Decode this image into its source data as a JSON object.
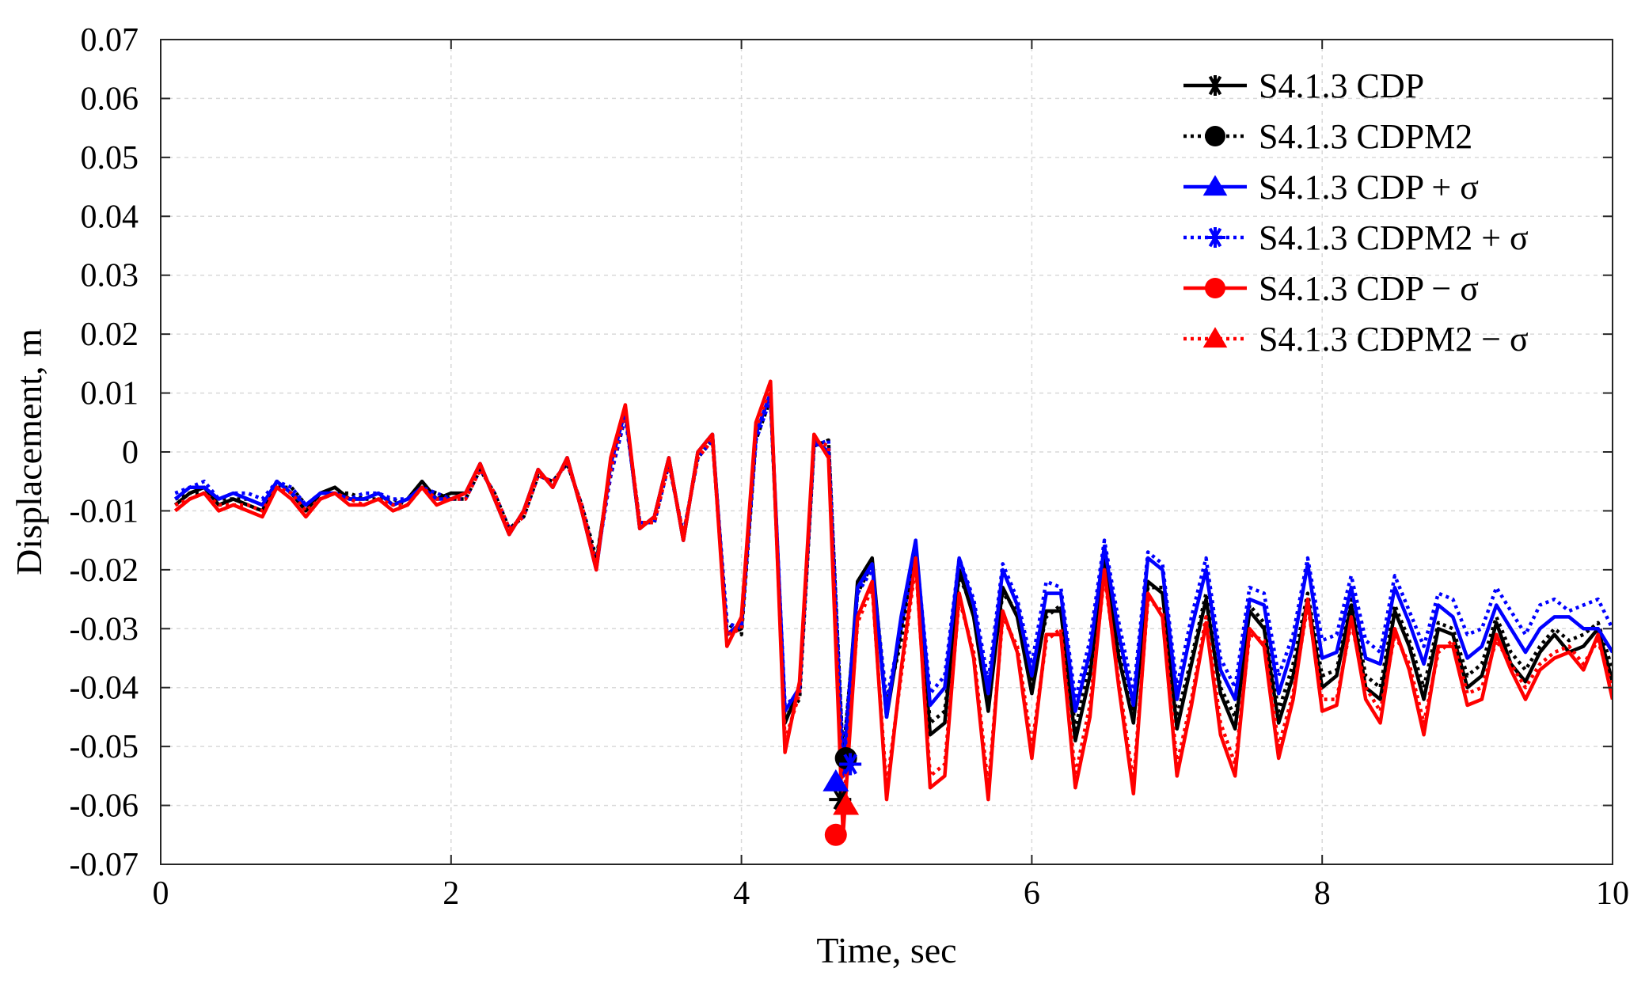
{
  "chart_data": {
    "type": "line",
    "title": "",
    "xlabel": "Time, sec",
    "ylabel": "Displacement, m",
    "xlim": [
      0,
      10
    ],
    "ylim": [
      -0.07,
      0.07
    ],
    "xticks": [
      0,
      2,
      4,
      6,
      8,
      10
    ],
    "xtick_labels": [
      "0",
      "2",
      "4",
      "6",
      "8",
      "10"
    ],
    "yticks": [
      0.07,
      0.06,
      0.05,
      0.04,
      0.03,
      0.02,
      0.01,
      0,
      -0.01,
      -0.02,
      -0.03,
      -0.04,
      -0.05,
      -0.06,
      -0.07
    ],
    "ytick_labels": [
      "0.07",
      "0.06",
      "0.05",
      "0.04",
      "0.03",
      "0.02",
      "0.01",
      "0",
      "-0.01",
      "-0.02",
      "-0.03",
      "-0.04",
      "-0.05",
      "-0.06",
      "-0.07"
    ],
    "grid": true,
    "legend_position": "top-right",
    "x": [
      0.1,
      0.2,
      0.3,
      0.4,
      0.5,
      0.6,
      0.7,
      0.8,
      0.9,
      1.0,
      1.1,
      1.2,
      1.3,
      1.4,
      1.5,
      1.6,
      1.7,
      1.8,
      1.9,
      2.0,
      2.1,
      2.2,
      2.3,
      2.4,
      2.5,
      2.6,
      2.7,
      2.8,
      2.9,
      3.0,
      3.1,
      3.2,
      3.3,
      3.4,
      3.5,
      3.6,
      3.7,
      3.8,
      3.9,
      4.0,
      4.1,
      4.2,
      4.3,
      4.4,
      4.5,
      4.6,
      4.7,
      4.8,
      4.9,
      5.0,
      5.1,
      5.2,
      5.3,
      5.4,
      5.5,
      5.6,
      5.7,
      5.8,
      5.9,
      6.0,
      6.1,
      6.2,
      6.3,
      6.4,
      6.5,
      6.6,
      6.7,
      6.8,
      6.9,
      7.0,
      7.1,
      7.2,
      7.3,
      7.4,
      7.5,
      7.6,
      7.7,
      7.8,
      7.9,
      8.0,
      8.1,
      8.2,
      8.3,
      8.4,
      8.5,
      8.6,
      8.7,
      8.8,
      8.9,
      9.0,
      9.1,
      9.2,
      9.3,
      9.4,
      9.5,
      9.6,
      9.7,
      9.8,
      9.9,
      10.0
    ],
    "series": [
      {
        "name": "S4.1.3 CDP",
        "color": "#000000",
        "line_style": "solid",
        "marker": "asterisk",
        "values": [
          -0.009,
          -0.007,
          -0.006,
          -0.009,
          -0.008,
          -0.009,
          -0.01,
          -0.005,
          -0.007,
          -0.01,
          -0.007,
          -0.006,
          -0.008,
          -0.008,
          -0.007,
          -0.009,
          -0.008,
          -0.005,
          -0.008,
          -0.007,
          -0.007,
          -0.002,
          -0.008,
          -0.014,
          -0.01,
          -0.003,
          -0.006,
          -0.001,
          -0.01,
          -0.019,
          -0.002,
          0.007,
          -0.013,
          -0.011,
          -0.001,
          -0.015,
          0.0,
          0.003,
          -0.031,
          -0.03,
          0.003,
          0.01,
          -0.046,
          -0.04,
          0.002,
          0.0,
          -0.055,
          -0.022,
          -0.018,
          -0.045,
          -0.03,
          -0.016,
          -0.048,
          -0.046,
          -0.02,
          -0.028,
          -0.044,
          -0.023,
          -0.028,
          -0.041,
          -0.027,
          -0.027,
          -0.049,
          -0.038,
          -0.018,
          -0.035,
          -0.046,
          -0.022,
          -0.024,
          -0.047,
          -0.036,
          -0.025,
          -0.041,
          -0.047,
          -0.027,
          -0.03,
          -0.046,
          -0.038,
          -0.025,
          -0.04,
          -0.038,
          -0.026,
          -0.04,
          -0.042,
          -0.027,
          -0.033,
          -0.042,
          -0.03,
          -0.031,
          -0.04,
          -0.038,
          -0.029,
          -0.036,
          -0.039,
          -0.034,
          -0.031,
          -0.034,
          -0.033,
          -0.03,
          -0.039
        ]
      },
      {
        "name": "S4.1.3 CDPM2",
        "color": "#000000",
        "line_style": "dotted",
        "marker": "circle",
        "values": [
          -0.008,
          -0.007,
          -0.007,
          -0.008,
          -0.008,
          -0.008,
          -0.009,
          -0.006,
          -0.006,
          -0.009,
          -0.008,
          -0.007,
          -0.007,
          -0.008,
          -0.008,
          -0.008,
          -0.009,
          -0.006,
          -0.007,
          -0.008,
          -0.008,
          -0.003,
          -0.007,
          -0.013,
          -0.011,
          -0.004,
          -0.005,
          -0.002,
          -0.009,
          -0.018,
          -0.004,
          0.006,
          -0.012,
          -0.012,
          -0.002,
          -0.014,
          -0.001,
          0.002,
          -0.029,
          -0.031,
          0.002,
          0.009,
          -0.045,
          -0.042,
          0.001,
          0.002,
          -0.052,
          -0.024,
          -0.019,
          -0.043,
          -0.032,
          -0.017,
          -0.046,
          -0.044,
          -0.021,
          -0.027,
          -0.042,
          -0.024,
          -0.027,
          -0.039,
          -0.028,
          -0.026,
          -0.047,
          -0.036,
          -0.019,
          -0.034,
          -0.044,
          -0.023,
          -0.023,
          -0.045,
          -0.035,
          -0.024,
          -0.04,
          -0.045,
          -0.026,
          -0.029,
          -0.044,
          -0.036,
          -0.024,
          -0.038,
          -0.037,
          -0.025,
          -0.038,
          -0.04,
          -0.026,
          -0.032,
          -0.04,
          -0.029,
          -0.03,
          -0.038,
          -0.036,
          -0.028,
          -0.034,
          -0.037,
          -0.033,
          -0.03,
          -0.032,
          -0.031,
          -0.029,
          -0.037
        ]
      },
      {
        "name": "S4.1.3 CDP + σ",
        "color": "#0000ff",
        "line_style": "solid",
        "marker": "triangle",
        "values": [
          -0.008,
          -0.006,
          -0.006,
          -0.008,
          -0.007,
          -0.008,
          -0.009,
          -0.005,
          -0.007,
          -0.009,
          -0.007,
          -0.007,
          -0.008,
          -0.008,
          -0.007,
          -0.009,
          -0.008,
          -0.006,
          -0.008,
          -0.008,
          -0.007,
          -0.002,
          -0.008,
          -0.014,
          -0.01,
          -0.003,
          -0.006,
          -0.001,
          -0.01,
          -0.02,
          -0.002,
          0.007,
          -0.013,
          -0.011,
          -0.001,
          -0.015,
          0.0,
          0.003,
          -0.031,
          -0.029,
          0.003,
          0.01,
          -0.044,
          -0.04,
          0.002,
          0.0,
          -0.055,
          -0.023,
          -0.019,
          -0.045,
          -0.028,
          -0.015,
          -0.043,
          -0.04,
          -0.018,
          -0.026,
          -0.041,
          -0.02,
          -0.026,
          -0.038,
          -0.024,
          -0.024,
          -0.044,
          -0.034,
          -0.016,
          -0.031,
          -0.043,
          -0.018,
          -0.02,
          -0.042,
          -0.03,
          -0.02,
          -0.037,
          -0.042,
          -0.025,
          -0.026,
          -0.041,
          -0.033,
          -0.019,
          -0.035,
          -0.034,
          -0.023,
          -0.035,
          -0.036,
          -0.023,
          -0.029,
          -0.036,
          -0.026,
          -0.028,
          -0.035,
          -0.033,
          -0.026,
          -0.03,
          -0.034,
          -0.03,
          -0.028,
          -0.028,
          -0.03,
          -0.03,
          -0.034
        ]
      },
      {
        "name": "S4.1.3 CDPM2 + σ",
        "color": "#0000ff",
        "line_style": "dotted",
        "marker": "asterisk",
        "values": [
          -0.007,
          -0.006,
          -0.005,
          -0.008,
          -0.007,
          -0.007,
          -0.008,
          -0.005,
          -0.006,
          -0.009,
          -0.007,
          -0.007,
          -0.008,
          -0.007,
          -0.007,
          -0.008,
          -0.008,
          -0.006,
          -0.007,
          -0.008,
          -0.008,
          -0.003,
          -0.007,
          -0.013,
          -0.011,
          -0.004,
          -0.005,
          -0.002,
          -0.009,
          -0.019,
          -0.004,
          0.006,
          -0.012,
          -0.012,
          -0.002,
          -0.014,
          -0.001,
          0.002,
          -0.029,
          -0.03,
          0.002,
          0.009,
          -0.043,
          -0.041,
          0.001,
          0.002,
          -0.052,
          -0.024,
          -0.02,
          -0.042,
          -0.03,
          -0.016,
          -0.041,
          -0.038,
          -0.018,
          -0.025,
          -0.039,
          -0.019,
          -0.025,
          -0.036,
          -0.022,
          -0.023,
          -0.042,
          -0.032,
          -0.015,
          -0.029,
          -0.041,
          -0.017,
          -0.019,
          -0.04,
          -0.028,
          -0.018,
          -0.035,
          -0.04,
          -0.023,
          -0.024,
          -0.038,
          -0.031,
          -0.018,
          -0.032,
          -0.031,
          -0.021,
          -0.032,
          -0.034,
          -0.021,
          -0.027,
          -0.033,
          -0.024,
          -0.025,
          -0.031,
          -0.03,
          -0.023,
          -0.027,
          -0.031,
          -0.026,
          -0.025,
          -0.027,
          -0.026,
          -0.025,
          -0.03
        ]
      },
      {
        "name": "S4.1.3 CDP − σ",
        "color": "#ff0000",
        "line_style": "solid",
        "marker": "circle",
        "values": [
          -0.01,
          -0.008,
          -0.007,
          -0.01,
          -0.009,
          -0.01,
          -0.011,
          -0.006,
          -0.008,
          -0.011,
          -0.008,
          -0.007,
          -0.009,
          -0.009,
          -0.008,
          -0.01,
          -0.009,
          -0.006,
          -0.009,
          -0.008,
          -0.007,
          -0.002,
          -0.008,
          -0.014,
          -0.01,
          -0.003,
          -0.006,
          -0.001,
          -0.01,
          -0.02,
          -0.001,
          0.008,
          -0.013,
          -0.011,
          -0.001,
          -0.015,
          0.0,
          0.003,
          -0.033,
          -0.028,
          0.005,
          0.012,
          -0.051,
          -0.039,
          0.003,
          -0.001,
          -0.065,
          -0.028,
          -0.022,
          -0.059,
          -0.037,
          -0.018,
          -0.057,
          -0.055,
          -0.024,
          -0.035,
          -0.059,
          -0.027,
          -0.034,
          -0.052,
          -0.031,
          -0.031,
          -0.057,
          -0.045,
          -0.02,
          -0.04,
          -0.058,
          -0.024,
          -0.028,
          -0.055,
          -0.043,
          -0.029,
          -0.048,
          -0.055,
          -0.03,
          -0.033,
          -0.052,
          -0.042,
          -0.025,
          -0.044,
          -0.043,
          -0.028,
          -0.042,
          -0.046,
          -0.03,
          -0.037,
          -0.048,
          -0.033,
          -0.033,
          -0.043,
          -0.042,
          -0.031,
          -0.037,
          -0.042,
          -0.037,
          -0.035,
          -0.034,
          -0.037,
          -0.031,
          -0.042
        ]
      },
      {
        "name": "S4.1.3 CDPM2 − σ",
        "color": "#ff0000",
        "line_style": "dotted",
        "marker": "triangle",
        "values": [
          -0.009,
          -0.008,
          -0.007,
          -0.009,
          -0.009,
          -0.009,
          -0.01,
          -0.006,
          -0.007,
          -0.01,
          -0.008,
          -0.007,
          -0.008,
          -0.009,
          -0.008,
          -0.009,
          -0.009,
          -0.006,
          -0.008,
          -0.008,
          -0.008,
          -0.003,
          -0.007,
          -0.013,
          -0.011,
          -0.004,
          -0.005,
          -0.002,
          -0.009,
          -0.019,
          -0.003,
          0.007,
          -0.012,
          -0.012,
          -0.002,
          -0.014,
          -0.001,
          0.002,
          -0.031,
          -0.03,
          0.004,
          0.011,
          -0.049,
          -0.041,
          0.002,
          0.001,
          -0.061,
          -0.029,
          -0.023,
          -0.057,
          -0.038,
          -0.019,
          -0.055,
          -0.053,
          -0.025,
          -0.034,
          -0.057,
          -0.028,
          -0.033,
          -0.05,
          -0.032,
          -0.03,
          -0.055,
          -0.043,
          -0.021,
          -0.039,
          -0.056,
          -0.025,
          -0.027,
          -0.053,
          -0.042,
          -0.028,
          -0.046,
          -0.053,
          -0.031,
          -0.032,
          -0.05,
          -0.041,
          -0.026,
          -0.042,
          -0.042,
          -0.029,
          -0.04,
          -0.044,
          -0.031,
          -0.036,
          -0.046,
          -0.034,
          -0.032,
          -0.041,
          -0.04,
          -0.032,
          -0.036,
          -0.04,
          -0.036,
          -0.034,
          -0.033,
          -0.036,
          -0.032,
          -0.04
        ]
      }
    ],
    "end_markers": [
      {
        "series": 0,
        "x": 4.68,
        "y": -0.059
      },
      {
        "series": 1,
        "x": 4.72,
        "y": -0.052
      },
      {
        "series": 2,
        "x": 4.65,
        "y": -0.056
      },
      {
        "series": 3,
        "x": 4.75,
        "y": -0.053
      },
      {
        "series": 4,
        "x": 4.65,
        "y": -0.065
      },
      {
        "series": 5,
        "x": 4.72,
        "y": -0.06
      }
    ]
  }
}
